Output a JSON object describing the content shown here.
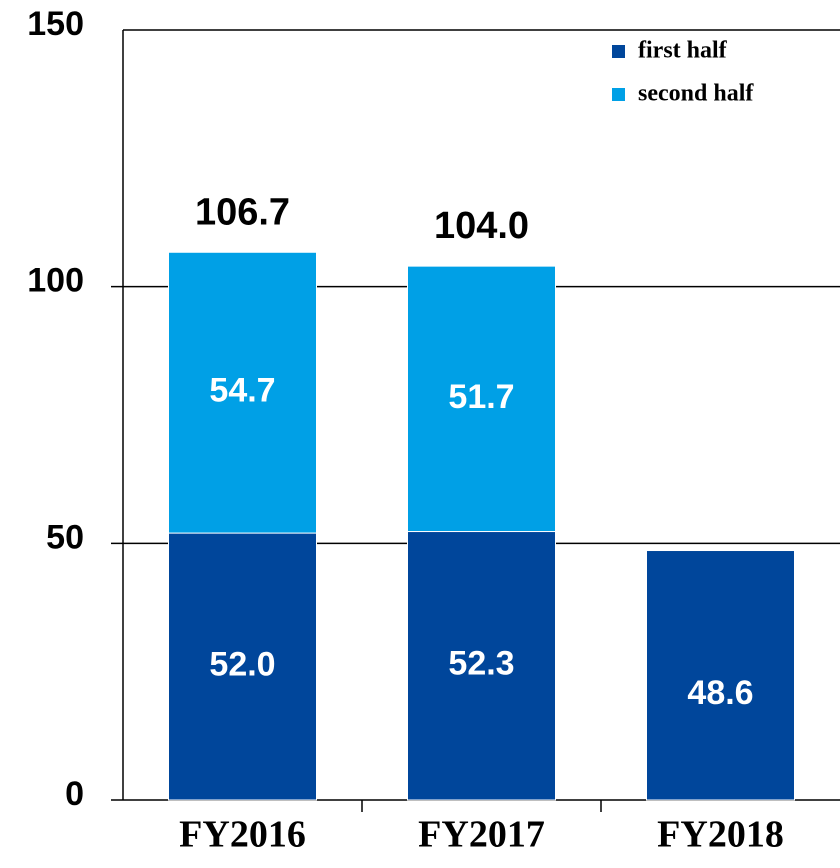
{
  "chart_data": {
    "type": "stacked_bar",
    "categories": [
      "FY2016",
      "FY2017",
      "FY2018"
    ],
    "series": [
      {
        "name": "first half",
        "color": "#00469b",
        "values": [
          52.0,
          52.3,
          48.6
        ],
        "value_labels": [
          "52.0",
          "52.3",
          "48.6"
        ]
      },
      {
        "name": "second half",
        "color": "#00a0e6",
        "values": [
          54.7,
          51.7,
          null
        ],
        "value_labels": [
          "54.7",
          "51.7",
          null
        ]
      }
    ],
    "total_labels": [
      "106.7",
      "104.0",
      null
    ],
    "ylim": [
      0,
      150
    ],
    "yticks": [
      0,
      50,
      100,
      150
    ],
    "grid": true,
    "legend": "upper right"
  }
}
